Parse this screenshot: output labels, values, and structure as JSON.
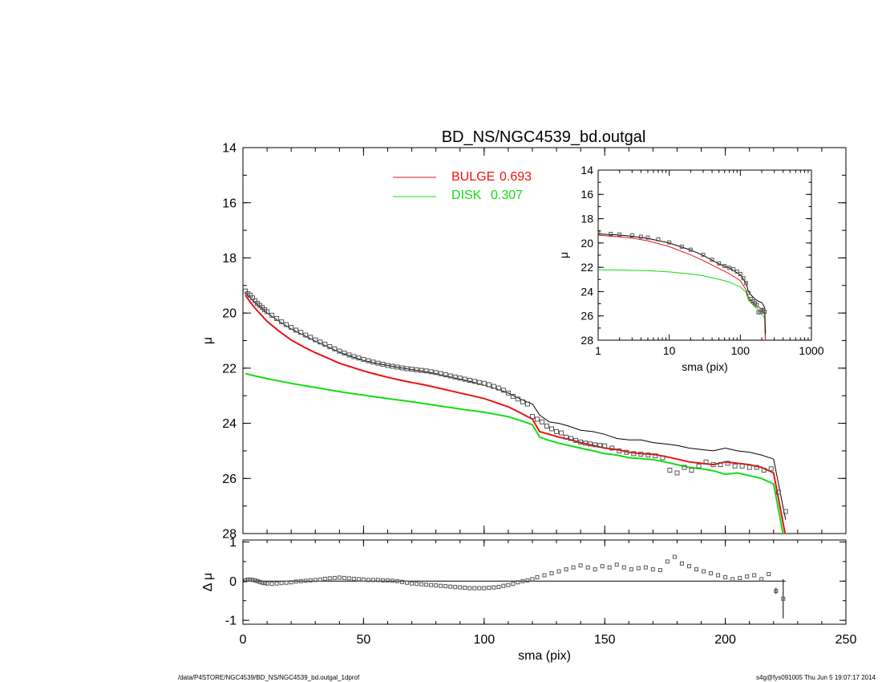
{
  "title": "BD_NS/NGC4539_bd.outgal",
  "footer_left": "/data/P4STORE/NGC4539/BD_NS/NGC4539_bd.outgal_1dprof",
  "footer_right": "s4g@fys091005  Thu Jun  5 19:07:17 2014",
  "colors": {
    "bulge": "#ee1111",
    "disk": "#11dd11",
    "model": "#000000",
    "data": "#555555"
  },
  "chart_data": [
    {
      "id": "main",
      "type": "scatter",
      "xlabel": "",
      "ylabel": "μ",
      "xlim": [
        0,
        250
      ],
      "ylim": [
        28,
        14
      ],
      "x_ticks": [
        0,
        50,
        100,
        150,
        200,
        250
      ],
      "y_ticks": [
        14,
        16,
        18,
        20,
        22,
        24,
        26,
        28
      ],
      "legend": [
        {
          "label": "BULGE",
          "value": "0.693",
          "color": "#ee1111"
        },
        {
          "label": "DISK",
          "value": "0.307",
          "color": "#11dd11"
        }
      ],
      "series": [
        {
          "role": "data",
          "x": [
            1,
            2,
            3,
            4,
            5,
            6,
            7,
            8,
            9,
            10,
            12,
            14,
            16,
            18,
            20,
            22,
            24,
            26,
            28,
            30,
            32,
            34,
            36,
            38,
            40,
            42,
            44,
            46,
            48,
            50,
            52,
            54,
            56,
            58,
            60,
            62,
            64,
            66,
            68,
            70,
            72,
            74,
            76,
            78,
            80,
            82,
            84,
            86,
            88,
            90,
            92,
            94,
            96,
            98,
            100,
            102,
            104,
            106,
            108,
            110,
            112,
            114,
            116,
            118,
            120,
            122,
            124,
            126,
            128,
            130,
            132,
            134,
            136,
            138,
            140,
            142,
            144,
            146,
            148,
            150,
            153,
            156,
            159,
            162,
            165,
            168,
            171,
            174,
            177,
            180,
            183,
            186,
            189,
            192,
            195,
            198,
            201,
            204,
            207,
            210,
            213,
            216,
            219,
            222,
            225
          ],
          "y": [
            19.2,
            19.3,
            19.35,
            19.45,
            19.55,
            19.65,
            19.72,
            19.8,
            19.88,
            19.95,
            20.08,
            20.2,
            20.32,
            20.42,
            20.52,
            20.62,
            20.7,
            20.8,
            20.88,
            20.97,
            21.05,
            21.13,
            21.22,
            21.3,
            21.38,
            21.45,
            21.52,
            21.58,
            21.63,
            21.68,
            21.73,
            21.78,
            21.82,
            21.86,
            21.9,
            21.93,
            21.96,
            21.99,
            22.02,
            22.04,
            22.06,
            22.08,
            22.1,
            22.13,
            22.16,
            22.2,
            22.24,
            22.28,
            22.32,
            22.36,
            22.4,
            22.44,
            22.48,
            22.52,
            22.55,
            22.6,
            22.66,
            22.72,
            22.8,
            22.9,
            23.02,
            23.12,
            23.22,
            23.3,
            23.75,
            23.85,
            23.95,
            24.1,
            24.2,
            24.3,
            24.35,
            24.5,
            24.55,
            24.62,
            24.68,
            24.72,
            24.75,
            24.78,
            24.8,
            24.82,
            24.9,
            25.0,
            25.05,
            25.1,
            25.12,
            25.15,
            25.18,
            25.25,
            25.7,
            25.8,
            25.6,
            25.7,
            25.55,
            25.4,
            25.5,
            25.5,
            25.45,
            25.55,
            25.55,
            25.6,
            25.6,
            25.7,
            25.65,
            26.5,
            27.2
          ]
        },
        {
          "role": "model",
          "x": [
            1,
            3,
            5,
            10,
            15,
            20,
            25,
            30,
            35,
            40,
            45,
            50,
            55,
            60,
            65,
            70,
            75,
            80,
            85,
            90,
            95,
            100,
            105,
            110,
            115,
            120,
            123,
            127,
            131,
            135,
            140,
            145,
            150,
            155,
            160,
            165,
            170,
            175,
            180,
            185,
            190,
            195,
            200,
            205,
            210,
            215,
            220,
            225
          ],
          "y": [
            19.25,
            19.45,
            19.62,
            20.0,
            20.3,
            20.58,
            20.8,
            21.02,
            21.22,
            21.42,
            21.58,
            21.72,
            21.82,
            21.9,
            21.98,
            22.05,
            22.12,
            22.2,
            22.3,
            22.4,
            22.5,
            22.62,
            22.75,
            22.9,
            23.12,
            23.3,
            23.7,
            23.95,
            24.0,
            24.1,
            24.25,
            24.3,
            24.4,
            24.55,
            24.6,
            24.6,
            24.7,
            24.75,
            24.8,
            24.9,
            24.95,
            25.0,
            24.9,
            25.0,
            25.05,
            25.15,
            25.3,
            27.5
          ]
        },
        {
          "name": "BULGE",
          "role": "bulge",
          "x": [
            1,
            3,
            5,
            10,
            15,
            20,
            25,
            30,
            35,
            40,
            45,
            50,
            55,
            60,
            65,
            70,
            75,
            80,
            85,
            90,
            95,
            100,
            105,
            110,
            115,
            120,
            123,
            127,
            131,
            135,
            140,
            145,
            150,
            155,
            160,
            165,
            170,
            175,
            180,
            185,
            190,
            195,
            200,
            205,
            210,
            215,
            220,
            225
          ],
          "y": [
            19.35,
            19.6,
            19.82,
            20.3,
            20.66,
            20.98,
            21.22,
            21.44,
            21.63,
            21.82,
            21.96,
            22.1,
            22.22,
            22.33,
            22.43,
            22.52,
            22.6,
            22.7,
            22.8,
            22.9,
            23.0,
            23.1,
            23.25,
            23.4,
            23.62,
            23.85,
            24.3,
            24.4,
            24.5,
            24.58,
            24.7,
            24.8,
            24.9,
            24.95,
            25.05,
            25.1,
            25.12,
            25.2,
            25.3,
            25.4,
            25.45,
            25.5,
            25.4,
            25.45,
            25.5,
            25.6,
            25.8,
            28.1
          ]
        },
        {
          "name": "DISK",
          "role": "disk",
          "x": [
            1,
            5,
            10,
            20,
            30,
            40,
            50,
            60,
            70,
            80,
            90,
            100,
            110,
            115,
            120,
            123,
            127,
            131,
            135,
            140,
            145,
            150,
            155,
            160,
            165,
            170,
            175,
            180,
            185,
            190,
            195,
            200,
            205,
            210,
            215,
            220,
            225
          ],
          "y": [
            22.2,
            22.28,
            22.38,
            22.55,
            22.7,
            22.85,
            22.98,
            23.1,
            23.22,
            23.35,
            23.48,
            23.6,
            23.76,
            23.9,
            24.05,
            24.5,
            24.62,
            24.72,
            24.8,
            24.9,
            25.0,
            25.1,
            25.15,
            25.25,
            25.28,
            25.32,
            25.4,
            25.5,
            25.6,
            25.65,
            25.72,
            25.85,
            25.8,
            25.9,
            26.0,
            26.2,
            28.5
          ]
        }
      ]
    },
    {
      "id": "inset",
      "type": "line",
      "xlabel": "sma (pix)",
      "ylabel": "μ",
      "xscale": "log",
      "xlim": [
        1,
        1000
      ],
      "ylim": [
        28,
        14
      ],
      "x_ticks": [
        1,
        10,
        100,
        1000
      ],
      "x_tick_labels": [
        "1",
        "10",
        "100",
        "1000"
      ],
      "y_ticks": [
        14,
        16,
        18,
        20,
        22,
        24,
        26,
        28
      ],
      "series": [
        {
          "role": "data",
          "x": [
            1,
            1.5,
            2,
            3,
            4,
            5,
            7,
            10,
            15,
            20,
            30,
            40,
            50,
            60,
            70,
            80,
            90,
            100,
            110,
            120,
            130,
            140,
            150,
            160,
            170,
            180,
            190,
            200,
            210,
            220
          ],
          "y": [
            19.2,
            19.25,
            19.3,
            19.38,
            19.48,
            19.55,
            19.7,
            19.95,
            20.3,
            20.55,
            20.97,
            21.38,
            21.68,
            21.9,
            22.04,
            22.16,
            22.36,
            22.55,
            22.9,
            23.3,
            24.1,
            24.6,
            24.8,
            24.95,
            25.1,
            25.7,
            25.7,
            25.5,
            25.55,
            25.65
          ]
        },
        {
          "role": "model",
          "x": [
            1,
            2,
            3,
            5,
            10,
            20,
            30,
            50,
            70,
            100,
            120,
            130,
            140,
            160,
            180,
            200,
            220,
            225
          ],
          "y": [
            19.25,
            19.35,
            19.45,
            19.62,
            20.0,
            20.58,
            21.02,
            21.72,
            22.05,
            22.62,
            23.3,
            24.0,
            24.25,
            24.6,
            24.8,
            24.9,
            25.3,
            27.5
          ]
        },
        {
          "name": "BULGE",
          "role": "bulge",
          "x": [
            1,
            2,
            3,
            5,
            10,
            20,
            30,
            50,
            70,
            100,
            120,
            130,
            140,
            160,
            180,
            200,
            220,
            225
          ],
          "y": [
            19.35,
            19.5,
            19.6,
            19.82,
            20.3,
            20.98,
            21.44,
            22.1,
            22.52,
            23.1,
            23.85,
            24.5,
            24.7,
            25.05,
            25.3,
            25.4,
            25.8,
            28.1
          ]
        },
        {
          "name": "DISK",
          "role": "disk",
          "x": [
            1,
            2,
            5,
            10,
            20,
            30,
            50,
            70,
            100,
            120,
            130,
            140,
            160,
            180,
            200,
            220,
            225
          ],
          "y": [
            22.2,
            22.22,
            22.28,
            22.38,
            22.55,
            22.7,
            22.98,
            23.22,
            23.6,
            24.05,
            24.7,
            24.9,
            25.25,
            25.5,
            25.85,
            26.2,
            28.5
          ]
        }
      ]
    },
    {
      "id": "residual",
      "type": "scatter",
      "xlabel": "sma (pix)",
      "ylabel": "Δ μ",
      "xlim": [
        0,
        250
      ],
      "ylim": [
        -1.1,
        1.05
      ],
      "x_ticks": [
        0,
        50,
        100,
        150,
        200,
        250
      ],
      "y_ticks": [
        -1,
        0,
        1
      ],
      "series": [
        {
          "role": "residual",
          "x": [
            1,
            2,
            3,
            4,
            5,
            6,
            7,
            8,
            9,
            10,
            12,
            14,
            16,
            18,
            20,
            22,
            24,
            26,
            28,
            30,
            32,
            34,
            36,
            38,
            40,
            42,
            44,
            46,
            48,
            50,
            52,
            54,
            56,
            58,
            60,
            62,
            64,
            66,
            68,
            70,
            72,
            74,
            76,
            78,
            80,
            82,
            84,
            86,
            88,
            90,
            92,
            94,
            96,
            98,
            100,
            102,
            104,
            106,
            108,
            110,
            112,
            114,
            116,
            118,
            120,
            122,
            125,
            128,
            131,
            134,
            137,
            140,
            143,
            146,
            149,
            152,
            155,
            158,
            161,
            164,
            167,
            170,
            173,
            176,
            179,
            182,
            185,
            188,
            191,
            194,
            197,
            200,
            203,
            206,
            209,
            212,
            215,
            218,
            221,
            224
          ],
          "y": [
            0.02,
            0.04,
            0.04,
            0.03,
            0.02,
            0.0,
            -0.02,
            -0.04,
            -0.05,
            -0.06,
            -0.07,
            -0.06,
            -0.05,
            -0.04,
            -0.03,
            -0.01,
            0.0,
            0.01,
            0.02,
            0.03,
            0.04,
            0.06,
            0.07,
            0.08,
            0.09,
            0.08,
            0.07,
            0.06,
            0.05,
            0.04,
            0.03,
            0.03,
            0.03,
            0.02,
            0.02,
            0.01,
            0.0,
            -0.02,
            -0.04,
            -0.06,
            -0.07,
            -0.08,
            -0.09,
            -0.1,
            -0.11,
            -0.12,
            -0.13,
            -0.14,
            -0.15,
            -0.16,
            -0.17,
            -0.18,
            -0.18,
            -0.18,
            -0.18,
            -0.17,
            -0.16,
            -0.15,
            -0.12,
            -0.1,
            -0.07,
            -0.03,
            0.0,
            0.02,
            0.05,
            0.1,
            0.15,
            0.2,
            0.25,
            0.3,
            0.35,
            0.4,
            0.35,
            0.3,
            0.38,
            0.35,
            0.42,
            0.35,
            0.3,
            0.33,
            0.35,
            0.3,
            0.28,
            0.5,
            0.62,
            0.45,
            0.38,
            0.3,
            0.25,
            0.2,
            0.15,
            0.1,
            0.05,
            0.08,
            0.12,
            0.15,
            0.05,
            0.18,
            -0.25,
            -0.45
          ],
          "err": [
            0,
            0,
            0,
            0,
            0,
            0,
            0,
            0,
            0,
            0,
            0,
            0,
            0,
            0,
            0,
            0,
            0,
            0,
            0,
            0,
            0,
            0,
            0,
            0,
            0,
            0,
            0,
            0,
            0,
            0,
            0,
            0,
            0,
            0,
            0,
            0,
            0,
            0,
            0,
            0,
            0,
            0,
            0,
            0,
            0,
            0,
            0,
            0,
            0,
            0,
            0,
            0,
            0,
            0,
            0,
            0,
            0,
            0,
            0,
            0,
            0,
            0,
            0,
            0,
            0,
            0,
            0,
            0,
            0,
            0,
            0,
            0,
            0,
            0,
            0,
            0,
            0,
            0,
            0,
            0,
            0,
            0,
            0,
            0,
            0,
            0,
            0,
            0,
            0,
            0,
            0,
            0,
            0,
            0,
            0,
            0,
            0,
            0,
            0.08,
            0.5
          ]
        }
      ]
    }
  ]
}
